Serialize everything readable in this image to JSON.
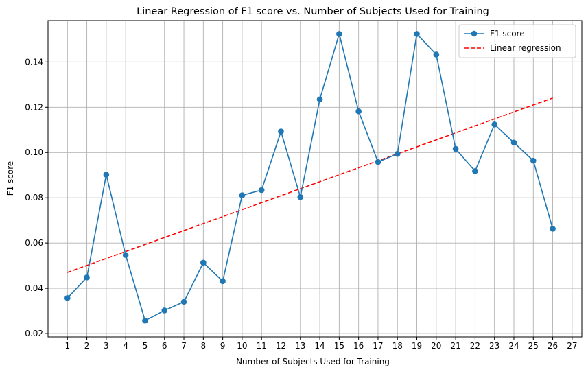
{
  "chart_data": {
    "type": "line",
    "title": "Linear Regression of F1 score vs. Number of Subjects Used for Training",
    "xlabel": "Number of Subjects Used for Training",
    "ylabel": "F1 score",
    "xlim": [
      0,
      27.5
    ],
    "ylim": [
      0.0185,
      0.1583
    ],
    "xticks": [
      1,
      2,
      3,
      4,
      5,
      6,
      7,
      8,
      9,
      10,
      11,
      12,
      13,
      14,
      15,
      16,
      17,
      18,
      19,
      20,
      21,
      22,
      23,
      24,
      25,
      26,
      27
    ],
    "yticks": [
      0.02,
      0.04,
      0.06,
      0.08,
      0.1,
      0.12,
      0.14
    ],
    "ytick_labels": [
      "0.02",
      "0.04",
      "0.06",
      "0.08",
      "0.10",
      "0.12",
      "0.14"
    ],
    "grid": true,
    "legend_position": "top-right",
    "series": [
      {
        "name": "F1 score",
        "style": "solid-line-with-markers",
        "color": "#1f77b4",
        "x": [
          1,
          2,
          3,
          4,
          5,
          6,
          7,
          8,
          9,
          10,
          11,
          12,
          13,
          14,
          15,
          16,
          17,
          18,
          19,
          20,
          21,
          22,
          23,
          24,
          25,
          26
        ],
        "y": [
          0.0357,
          0.0448,
          0.0902,
          0.0547,
          0.0257,
          0.0302,
          0.034,
          0.0513,
          0.0431,
          0.0811,
          0.0834,
          0.1093,
          0.0803,
          0.1235,
          0.1524,
          0.1182,
          0.0958,
          0.0994,
          0.1524,
          0.1433,
          0.1016,
          0.0918,
          0.1124,
          0.1044,
          0.0964,
          0.0663
        ]
      },
      {
        "name": "Linear regression",
        "style": "dashed-line",
        "color": "#ff0000",
        "x": [
          1,
          26
        ],
        "y": [
          0.047,
          0.1241
        ]
      }
    ]
  }
}
